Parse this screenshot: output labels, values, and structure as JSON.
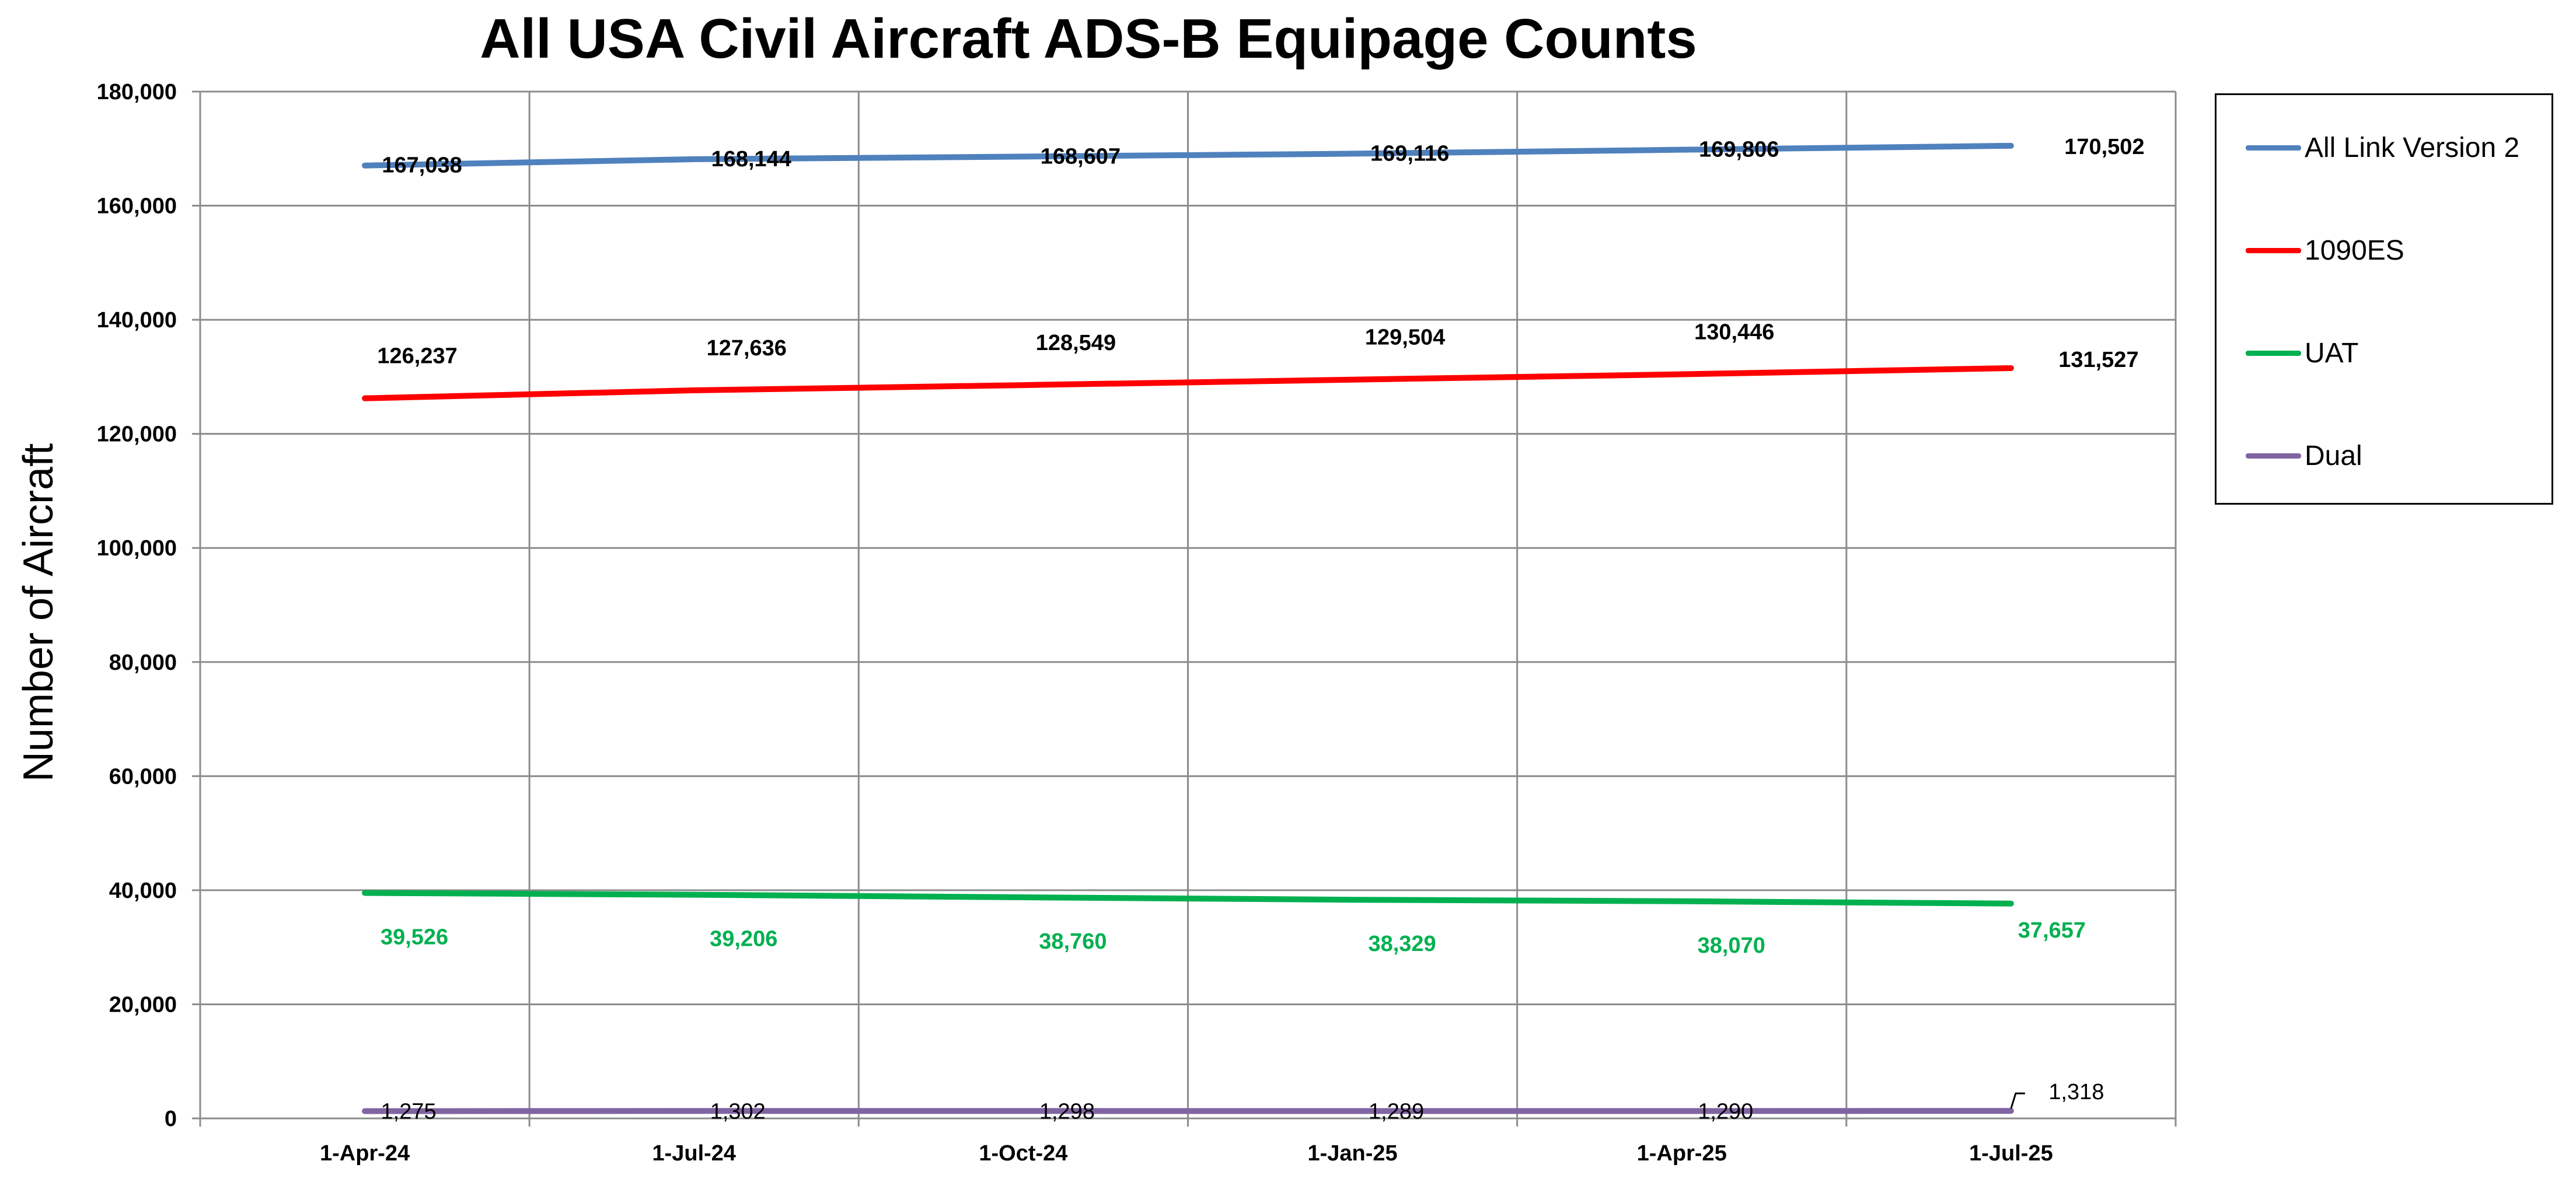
{
  "chart_data": {
    "type": "line",
    "title": "All USA Civil Aircraft ADS-B Equipage Counts",
    "xlabel": "",
    "ylabel": "Number of Aircraft",
    "categories": [
      "1-Apr-24",
      "1-Jul-24",
      "1-Oct-24",
      "1-Jan-25",
      "1-Apr-25",
      "1-Jul-25"
    ],
    "ylim": [
      0,
      180000
    ],
    "yticks": [
      0,
      20000,
      40000,
      60000,
      80000,
      100000,
      120000,
      140000,
      160000,
      180000
    ],
    "ytick_labels": [
      "0",
      "20,000",
      "40,000",
      "60,000",
      "80,000",
      "100,000",
      "120,000",
      "140,000",
      "160,000",
      "180,000"
    ],
    "grid": true,
    "legend_position": "right",
    "series": [
      {
        "name": "All Link Version 2",
        "color": "#4f81bd",
        "values": [
          167038,
          168144,
          168607,
          169116,
          169806,
          170502
        ],
        "labels": [
          "167,038",
          "168,144",
          "168,607",
          "169,116",
          "169,806",
          "170,502"
        ],
        "label_color": "#000000"
      },
      {
        "name": "1090ES",
        "color": "#ff0000",
        "values": [
          126237,
          127636,
          128549,
          129504,
          130446,
          131527
        ],
        "labels": [
          "126,237",
          "127,636",
          "128,549",
          "129,504",
          "130,446",
          "131,527"
        ],
        "label_color": "#000000"
      },
      {
        "name": "UAT",
        "color": "#00b050",
        "values": [
          39526,
          39206,
          38760,
          38329,
          38070,
          37657
        ],
        "labels": [
          "39,526",
          "39,206",
          "38,760",
          "38,329",
          "38,070",
          "37,657"
        ],
        "label_color": "#00b050"
      },
      {
        "name": "Dual",
        "color": "#8064a2",
        "values": [
          1275,
          1302,
          1298,
          1289,
          1290,
          1318
        ],
        "labels": [
          "1,275",
          "1,302",
          "1,298",
          "1,289",
          "1,290",
          "1,318"
        ],
        "label_color": "#000000"
      }
    ]
  }
}
